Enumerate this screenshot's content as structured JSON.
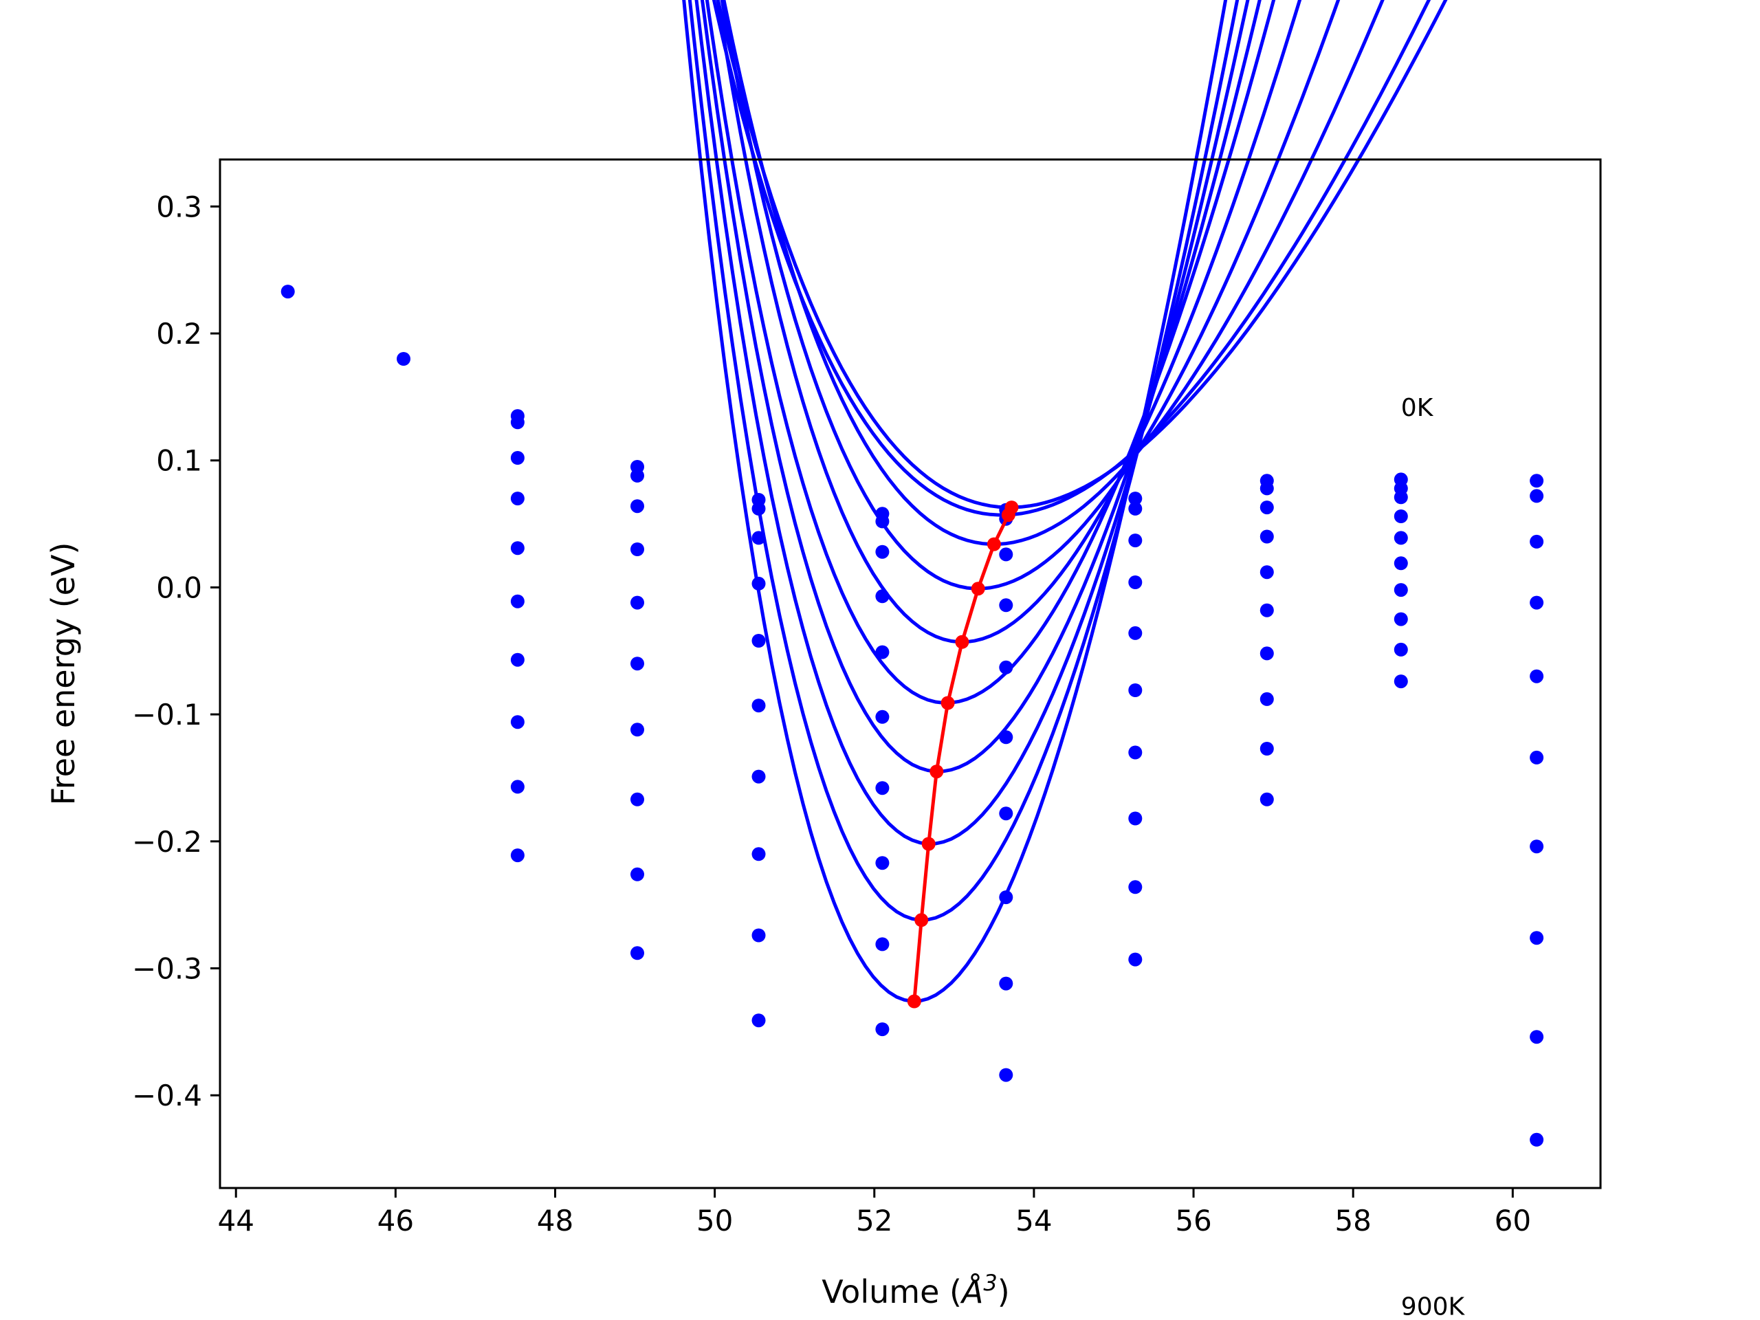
{
  "chart_data": {
    "type": "line",
    "title": "",
    "xlabel_main": "Volume (",
    "xlabel_unit": "Å",
    "xlabel_exp": "3",
    "xlabel_close": ")",
    "ylabel": "Free energy (eV)",
    "xlim": [
      43.8,
      61.1
    ],
    "ylim": [
      -0.473,
      0.337
    ],
    "xticks": [
      44,
      46,
      48,
      50,
      52,
      54,
      56,
      58,
      60
    ],
    "xtick_labels": [
      "44",
      "46",
      "48",
      "50",
      "52",
      "54",
      "56",
      "58",
      "60"
    ],
    "yticks": [
      0.3,
      0.2,
      0.1,
      0.0,
      -0.1,
      -0.2,
      -0.3,
      -0.4
    ],
    "ytick_labels": [
      "0.3",
      "0.2",
      "0.1",
      "0.0",
      "−0.1",
      "−0.2",
      "−0.3",
      "−0.4"
    ],
    "annotations": [
      {
        "text": "0K",
        "x": 58.6,
        "y": 0.135
      },
      {
        "text": "900K",
        "x": 58.6,
        "y": -0.573
      }
    ],
    "grid": false,
    "colors": {
      "fit": "#0000ff",
      "data": "#0000ff",
      "minimum": "#ff0000"
    },
    "fits": [
      {
        "v0": 53.7,
        "e0": 0.063,
        "b": 0.02,
        "b4": 0.0012
      },
      {
        "v0": 53.6,
        "e0": 0.057,
        "b": 0.021,
        "b4": 0.0013
      },
      {
        "v0": 53.5,
        "e0": 0.034,
        "b": 0.026,
        "b4": 0.0014
      },
      {
        "v0": 53.3,
        "e0": -0.001,
        "b": 0.032,
        "b4": 0.0016
      },
      {
        "v0": 53.1,
        "e0": -0.043,
        "b": 0.039,
        "b4": 0.0018
      },
      {
        "v0": 52.9,
        "e0": -0.091,
        "b": 0.045,
        "b4": 0.002
      },
      {
        "v0": 52.8,
        "e0": -0.145,
        "b": 0.051,
        "b4": 0.0022
      },
      {
        "v0": 52.7,
        "e0": -0.202,
        "b": 0.057,
        "b4": 0.0024
      },
      {
        "v0": 52.6,
        "e0": -0.262,
        "b": 0.063,
        "b4": 0.0026
      },
      {
        "v0": 52.5,
        "e0": -0.326,
        "b": 0.07,
        "b4": 0.0028
      }
    ],
    "fit_range": [
      44.65,
      60.3
    ],
    "data_points": [
      [
        44.65,
        0.233
      ],
      [
        46.1,
        0.18
      ],
      [
        47.53,
        0.135
      ],
      [
        47.53,
        0.13
      ],
      [
        47.53,
        0.102
      ],
      [
        47.53,
        0.07
      ],
      [
        47.53,
        0.031
      ],
      [
        47.53,
        -0.011
      ],
      [
        47.53,
        -0.057
      ],
      [
        47.53,
        -0.106
      ],
      [
        47.53,
        -0.157
      ],
      [
        47.53,
        -0.211
      ],
      [
        49.03,
        0.095
      ],
      [
        49.03,
        0.088
      ],
      [
        49.03,
        0.064
      ],
      [
        49.03,
        0.03
      ],
      [
        49.03,
        -0.012
      ],
      [
        49.03,
        -0.06
      ],
      [
        49.03,
        -0.112
      ],
      [
        49.03,
        -0.167
      ],
      [
        49.03,
        -0.226
      ],
      [
        49.03,
        -0.288
      ],
      [
        50.55,
        0.069
      ],
      [
        50.55,
        0.062
      ],
      [
        50.55,
        0.039
      ],
      [
        50.55,
        0.003
      ],
      [
        50.55,
        -0.042
      ],
      [
        50.55,
        -0.093
      ],
      [
        50.55,
        -0.149
      ],
      [
        50.55,
        -0.21
      ],
      [
        50.55,
        -0.274
      ],
      [
        50.55,
        -0.341
      ],
      [
        52.1,
        0.058
      ],
      [
        52.1,
        0.052
      ],
      [
        52.1,
        0.028
      ],
      [
        52.1,
        -0.007
      ],
      [
        52.1,
        -0.051
      ],
      [
        52.1,
        -0.102
      ],
      [
        52.1,
        -0.158
      ],
      [
        52.1,
        -0.217
      ],
      [
        52.1,
        -0.281
      ],
      [
        52.1,
        -0.348
      ],
      [
        53.65,
        0.061
      ],
      [
        53.65,
        0.054
      ],
      [
        53.65,
        0.026
      ],
      [
        53.65,
        -0.014
      ],
      [
        53.65,
        -0.063
      ],
      [
        53.65,
        -0.118
      ],
      [
        53.65,
        -0.178
      ],
      [
        53.65,
        -0.244
      ],
      [
        53.65,
        -0.312
      ],
      [
        53.65,
        -0.384
      ],
      [
        55.27,
        0.07
      ],
      [
        55.27,
        0.062
      ],
      [
        55.27,
        0.037
      ],
      [
        55.27,
        0.004
      ],
      [
        55.27,
        -0.036
      ],
      [
        55.27,
        -0.081
      ],
      [
        55.27,
        -0.13
      ],
      [
        55.27,
        -0.182
      ],
      [
        55.27,
        -0.236
      ],
      [
        55.27,
        -0.293
      ],
      [
        56.92,
        0.084
      ],
      [
        56.92,
        0.078
      ],
      [
        56.92,
        0.063
      ],
      [
        56.92,
        0.04
      ],
      [
        56.92,
        0.012
      ],
      [
        56.92,
        -0.018
      ],
      [
        56.92,
        -0.052
      ],
      [
        56.92,
        -0.088
      ],
      [
        56.92,
        -0.127
      ],
      [
        56.92,
        -0.167
      ],
      [
        58.6,
        0.085
      ],
      [
        58.6,
        0.078
      ],
      [
        58.6,
        0.071
      ],
      [
        58.6,
        0.056
      ],
      [
        58.6,
        0.039
      ],
      [
        58.6,
        0.019
      ],
      [
        58.6,
        -0.002
      ],
      [
        58.6,
        -0.025
      ],
      [
        58.6,
        -0.049
      ],
      [
        58.6,
        -0.074
      ],
      [
        60.3,
        0.084
      ],
      [
        60.3,
        0.072
      ],
      [
        60.3,
        0.036
      ],
      [
        60.3,
        -0.012
      ],
      [
        60.3,
        -0.07
      ],
      [
        60.3,
        -0.134
      ],
      [
        60.3,
        -0.204
      ],
      [
        60.3,
        -0.276
      ],
      [
        60.3,
        -0.354
      ],
      [
        60.3,
        -0.435
      ]
    ],
    "minimum_curve": {
      "x": [
        53.72,
        53.68,
        53.5,
        53.3,
        53.1,
        52.92,
        52.78,
        52.68,
        52.59,
        52.5
      ],
      "y": [
        0.063,
        0.057,
        0.034,
        -0.001,
        -0.043,
        -0.091,
        -0.145,
        -0.202,
        -0.262,
        -0.326
      ]
    }
  }
}
